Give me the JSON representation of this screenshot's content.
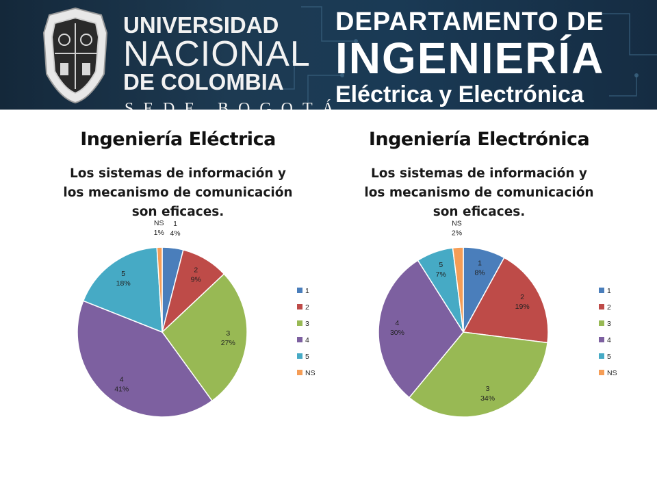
{
  "banner": {
    "university_line1": "UNIVERSIDAD",
    "university_line2": "NACIONAL",
    "university_line3": "DE COLOMBIA",
    "university_line4": "SEDE BOGOTÁ",
    "dept_line1": "DEPARTAMENTO DE",
    "dept_line2": "INGENIERÍA",
    "dept_line3": "Eléctrica y Electrónica",
    "colors": {
      "background": "#1a3a55",
      "text": "#ffffff"
    }
  },
  "chart_data": [
    {
      "type": "pie",
      "heading": "Ingeniería Eléctrica",
      "title": "Los sistemas de información y los mecanismo de comunicación son eficaces.",
      "categories": [
        "1",
        "2",
        "3",
        "4",
        "5",
        "NS"
      ],
      "values": [
        4,
        9,
        27,
        41,
        18,
        1
      ],
      "labels": [
        "4%",
        "9%",
        "27%",
        "41%",
        "18%",
        "1%"
      ],
      "colors": [
        "#4a7ebb",
        "#be4b48",
        "#98b954",
        "#7d60a0",
        "#46aac5",
        "#f59d56"
      ],
      "legend": "right"
    },
    {
      "type": "pie",
      "heading": "Ingeniería Electrónica",
      "title": "Los sistemas de información y los mecanismo de comunicación son eficaces.",
      "categories": [
        "1",
        "2",
        "3",
        "4",
        "5",
        "NS"
      ],
      "values": [
        8,
        19,
        34,
        30,
        7,
        2
      ],
      "labels": [
        "8%",
        "19%",
        "34%",
        "30%",
        "7%",
        "2%"
      ],
      "colors": [
        "#4a7ebb",
        "#be4b48",
        "#98b954",
        "#7d60a0",
        "#46aac5",
        "#f59d56"
      ],
      "legend": "right"
    }
  ]
}
